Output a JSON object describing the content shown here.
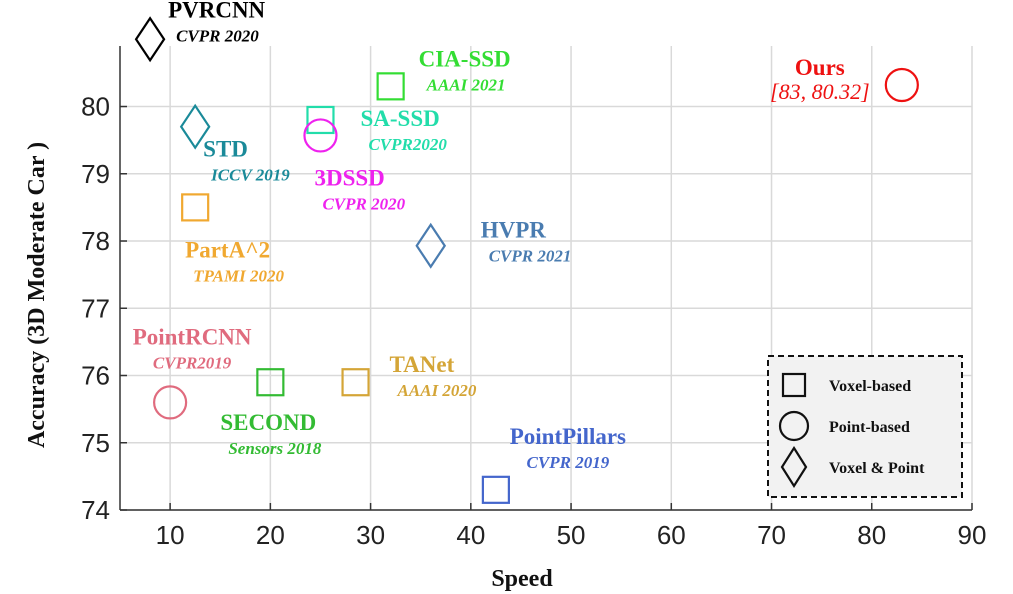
{
  "chart_data": {
    "type": "scatter",
    "xlabel": "Speed",
    "ylabel": "Accuracy (3D Moderate Car )",
    "xlim": [
      5,
      90
    ],
    "ylim": [
      74,
      80.9
    ],
    "xticks": [
      "10",
      "20",
      "30",
      "40",
      "50",
      "60",
      "70",
      "80",
      "90"
    ],
    "yticks": [
      "74",
      "75",
      "76",
      "77",
      "78",
      "79",
      "80"
    ],
    "grid": true,
    "legend_position": "bottom-right",
    "legend": [
      {
        "label": "Voxel-based",
        "marker": "square"
      },
      {
        "label": "Point-based",
        "marker": "circle"
      },
      {
        "label": "Voxel & Point",
        "marker": "diamond"
      }
    ],
    "points": [
      {
        "name": "PVRCNN",
        "venue": "CVPR 2020",
        "x": 8,
        "y": 81.0,
        "marker": "diamond",
        "color": "#000000"
      },
      {
        "name": "CIA-SSD",
        "venue": "AAAI 2021",
        "x": 32,
        "y": 80.3,
        "marker": "square",
        "color": "#33dd33"
      },
      {
        "name": "Ours",
        "venue": "[83, 80.32]",
        "x": 83,
        "y": 80.32,
        "marker": "circle",
        "color": "#ee1111"
      },
      {
        "name": "SA-SSD",
        "venue": "CVPR2020",
        "x": 25,
        "y": 79.8,
        "marker": "square",
        "color": "#22ddaa"
      },
      {
        "name": "STD",
        "venue": "ICCV 2019",
        "x": 12.5,
        "y": 79.7,
        "marker": "diamond",
        "color": "#1a8a99"
      },
      {
        "name": "3DSSD",
        "venue": "CVPR 2020",
        "x": 25,
        "y": 79.57,
        "marker": "circle",
        "color": "#ee22ee"
      },
      {
        "name": "PartA^2",
        "venue": "TPAMI 2020",
        "x": 12.5,
        "y": 78.5,
        "marker": "square",
        "color": "#f0a830"
      },
      {
        "name": "HVPR",
        "venue": "CVPR 2021",
        "x": 36,
        "y": 77.93,
        "marker": "diamond",
        "color": "#4a7cb0"
      },
      {
        "name": "PointRCNN",
        "venue": "CVPR2019",
        "x": 10,
        "y": 75.6,
        "marker": "circle",
        "color": "#e06b7e"
      },
      {
        "name": "SECOND",
        "venue": "Sensors 2018",
        "x": 20,
        "y": 75.9,
        "marker": "square",
        "color": "#33bb33"
      },
      {
        "name": "TANet",
        "venue": "AAAI 2020",
        "x": 28.5,
        "y": 75.9,
        "marker": "square",
        "color": "#d4a537"
      },
      {
        "name": "PointPillars",
        "venue": "CVPR 2019",
        "x": 42.5,
        "y": 74.3,
        "marker": "square",
        "color": "#4466cc"
      }
    ]
  }
}
